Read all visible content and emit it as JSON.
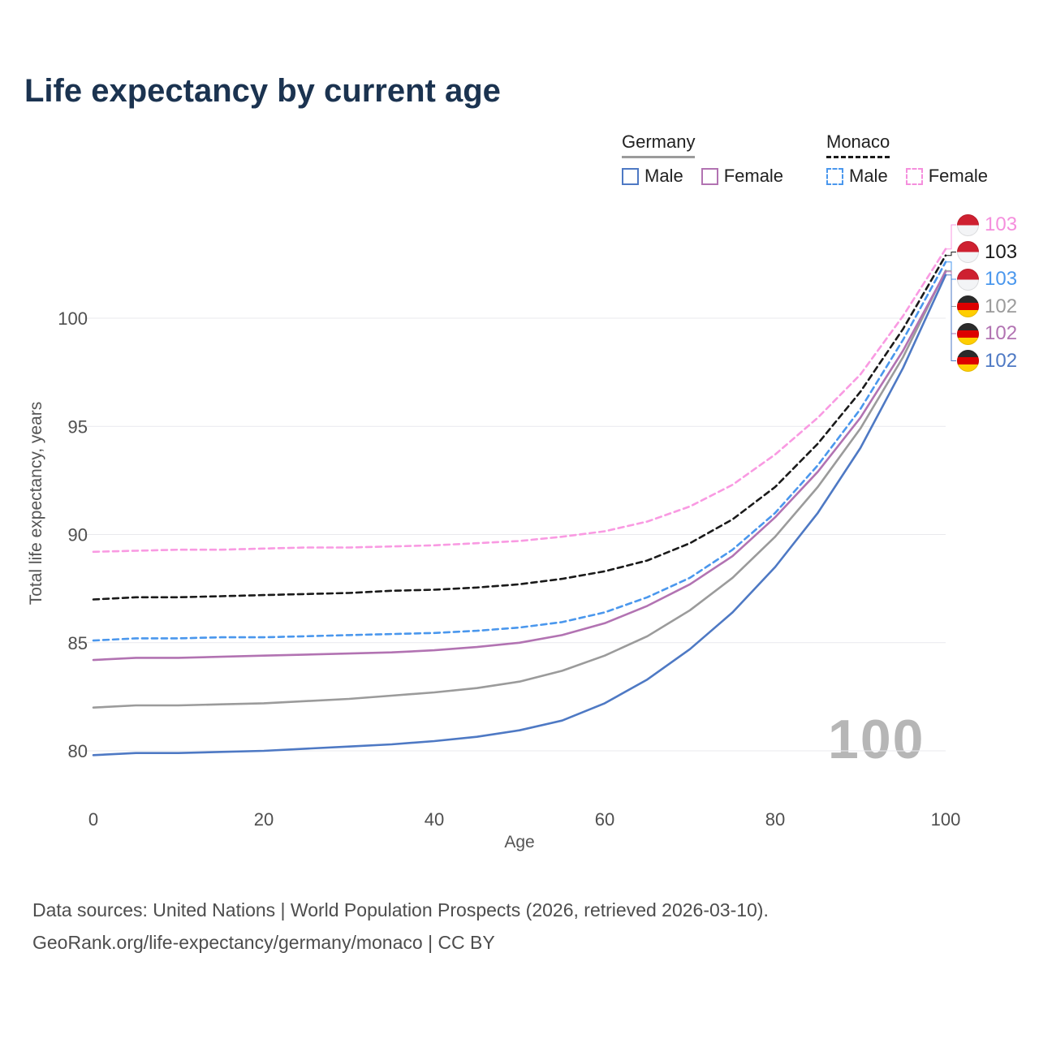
{
  "page": {
    "title": "Life expectancy by current age",
    "footer_line1": "Data sources: United Nations | World Population Prospects (2026, retrieved 2026-03-10).",
    "footer_line2": "GeoRank.org/life-expectancy/germany/monaco | CC BY"
  },
  "legend": {
    "germany": {
      "label": "Germany",
      "male_label": "Male",
      "female_label": "Female"
    },
    "monaco": {
      "label": "Monaco",
      "male_label": "Male",
      "female_label": "Female"
    }
  },
  "chart_data": {
    "type": "line",
    "title": "Life expectancy by current age",
    "xlabel": "Age",
    "ylabel": "Total life expectancy, years",
    "xlim": [
      0,
      100
    ],
    "ylim": [
      78.5,
      104
    ],
    "xticks": [
      0,
      20,
      40,
      60,
      80,
      100
    ],
    "yticks": [
      80,
      85,
      90,
      95,
      100
    ],
    "grid": "horizontal",
    "legend_position": "top-right",
    "age_watermark": "100",
    "x": [
      0,
      5,
      10,
      15,
      20,
      25,
      30,
      35,
      40,
      45,
      50,
      55,
      60,
      65,
      70,
      75,
      80,
      85,
      90,
      95,
      100
    ],
    "series": [
      {
        "id": "germany_total",
        "name": "Germany (both sexes)",
        "country": "Germany",
        "sex": "total",
        "line_style": "solid",
        "color": "#9b9b9b",
        "values": [
          82.0,
          82.1,
          82.1,
          82.15,
          82.2,
          82.3,
          82.4,
          82.55,
          82.7,
          82.9,
          83.2,
          83.7,
          84.4,
          85.3,
          86.5,
          88.0,
          89.9,
          92.2,
          94.9,
          98.2,
          102.2
        ]
      },
      {
        "id": "germany_female",
        "name": "Germany Female",
        "country": "Germany",
        "sex": "female",
        "line_style": "solid",
        "color": "#b273b2",
        "values": [
          84.2,
          84.3,
          84.3,
          84.35,
          84.4,
          84.45,
          84.5,
          84.55,
          84.65,
          84.8,
          85.0,
          85.35,
          85.9,
          86.7,
          87.7,
          89.0,
          90.8,
          92.9,
          95.4,
          98.5,
          102.15
        ]
      },
      {
        "id": "germany_male",
        "name": "Germany Male",
        "country": "Germany",
        "sex": "male",
        "line_style": "solid",
        "color": "#4e79c4",
        "values": [
          79.8,
          79.9,
          79.9,
          79.95,
          80.0,
          80.1,
          80.2,
          80.3,
          80.45,
          80.65,
          80.95,
          81.4,
          82.2,
          83.3,
          84.7,
          86.4,
          88.5,
          91.0,
          94.0,
          97.7,
          102.0
        ]
      },
      {
        "id": "monaco_male",
        "name": "Monaco Male",
        "country": "Monaco",
        "sex": "male",
        "line_style": "dashed",
        "color": "#4a97ed",
        "values": [
          85.1,
          85.2,
          85.2,
          85.25,
          85.25,
          85.3,
          85.35,
          85.4,
          85.45,
          85.55,
          85.7,
          85.95,
          86.4,
          87.1,
          88.0,
          89.3,
          91.0,
          93.2,
          95.8,
          99.0,
          102.6
        ]
      },
      {
        "id": "monaco_total",
        "name": "Monaco (both sexes)",
        "country": "Monaco",
        "sex": "total",
        "line_style": "dashed",
        "color": "#1a1a1a",
        "values": [
          87.0,
          87.1,
          87.1,
          87.15,
          87.2,
          87.25,
          87.3,
          87.4,
          87.45,
          87.55,
          87.7,
          87.95,
          88.3,
          88.8,
          89.6,
          90.7,
          92.2,
          94.2,
          96.6,
          99.5,
          102.9
        ]
      },
      {
        "id": "monaco_female",
        "name": "Monaco Female",
        "country": "Monaco",
        "sex": "female",
        "line_style": "dashed",
        "color": "#f99ae2",
        "values": [
          89.2,
          89.25,
          89.3,
          89.3,
          89.35,
          89.4,
          89.4,
          89.45,
          89.5,
          89.6,
          89.7,
          89.9,
          90.15,
          90.6,
          91.3,
          92.3,
          93.7,
          95.4,
          97.4,
          100.1,
          103.2
        ]
      }
    ],
    "end_labels": [
      {
        "series": "monaco_female",
        "value": "103",
        "flag": "monaco",
        "color": "#f58fdd"
      },
      {
        "series": "monaco_total",
        "value": "103",
        "flag": "monaco",
        "color": "#1a1a1a"
      },
      {
        "series": "monaco_male",
        "value": "103",
        "flag": "monaco",
        "color": "#4a97ed"
      },
      {
        "series": "germany_total",
        "value": "102",
        "flag": "germany",
        "color": "#9b9b9b"
      },
      {
        "series": "germany_female",
        "value": "102",
        "flag": "germany",
        "color": "#b273b2"
      },
      {
        "series": "germany_male",
        "value": "102",
        "flag": "germany",
        "color": "#4e79c4"
      }
    ]
  }
}
